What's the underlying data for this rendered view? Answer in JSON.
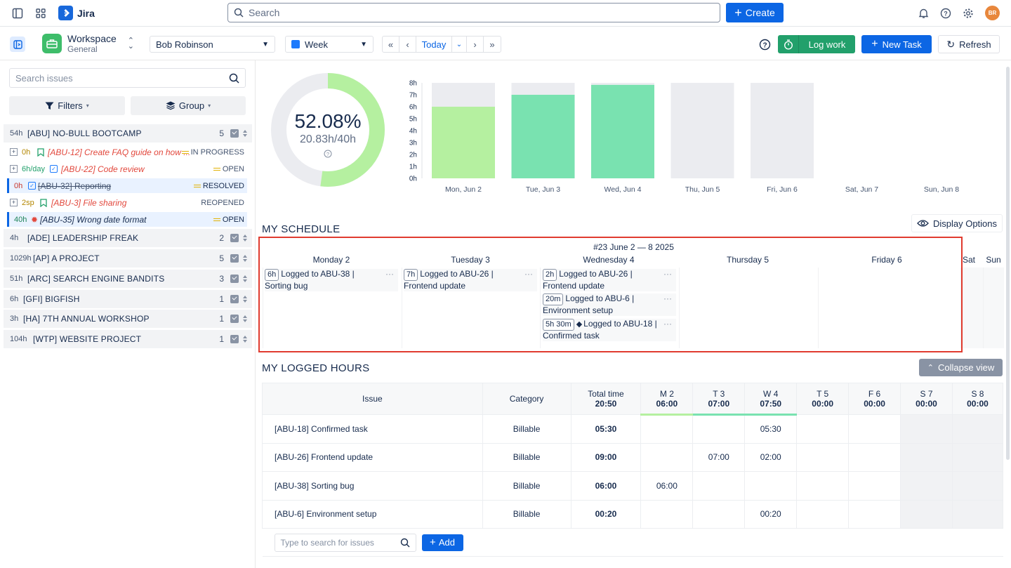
{
  "topbar": {
    "app_name": "Jira",
    "search_placeholder": "Search",
    "create_label": "Create",
    "avatar_initials": "BR"
  },
  "toolbar": {
    "workspace_title": "Workspace",
    "workspace_sub": "General",
    "user_select": "Bob Robinson",
    "period_select": "Week",
    "today_label": "Today",
    "log_work_label": "Log work",
    "new_task_label": "New Task",
    "refresh_label": "Refresh"
  },
  "sidebar": {
    "search_placeholder": "Search issues",
    "filters_label": "Filters",
    "group_label": "Group",
    "projects": [
      {
        "hours": "54h",
        "title": "[ABU] NO-BULL BOOTCAMP",
        "count": "5"
      },
      {
        "hours": "4h",
        "title": "[ADE] LEADERSHIP FREAK",
        "count": "2"
      },
      {
        "hours": "1029h",
        "title": "[AP] A PROJECT",
        "count": "5"
      },
      {
        "hours": "51h",
        "title": "[ARC] SEARCH ENGINE BANDITS",
        "count": "3"
      },
      {
        "hours": "6h",
        "title": "[GFI] BIGFISH",
        "count": "1"
      },
      {
        "hours": "3h",
        "title": "[HA] 7TH ANNUAL WORKSHOP",
        "count": "1"
      },
      {
        "hours": "104h",
        "title": "[WTP] WEBSITE PROJECT",
        "count": "1"
      }
    ],
    "issues": [
      {
        "est": "0h",
        "title": "[ABU-12] Create FAQ guide on how ...",
        "status": "IN PROGRESS"
      },
      {
        "est": "6h/day",
        "title": "[ABU-22] Code review",
        "status": "OPEN"
      },
      {
        "est": "0h",
        "title": "[ABU-32] Reporting",
        "status": "RESOLVED"
      },
      {
        "est": "2sp",
        "title": "[ABU-3] File sharing",
        "status": "REOPENED"
      },
      {
        "est": "40h",
        "title": "[ABU-35] Wrong date format",
        "status": "OPEN"
      }
    ]
  },
  "progress": {
    "percent_text": "52.08%",
    "hours_text": "20.83h/40h",
    "fraction": 0.5208
  },
  "chart_data": {
    "type": "bar",
    "categories": [
      "Mon, Jun 2",
      "Tue, Jun 3",
      "Wed, Jun 4",
      "Thu, Jun 5",
      "Fri, Jun 6",
      "Sat, Jun 7",
      "Sun, Jun 8"
    ],
    "series": [
      {
        "values": [
          6,
          7,
          7.83,
          0,
          0,
          0,
          0
        ]
      },
      {
        "values": [
          8,
          8,
          8,
          8,
          8,
          0,
          0
        ]
      }
    ],
    "y_ticks": [
      "0h",
      "1h",
      "2h",
      "3h",
      "4h",
      "5h",
      "6h",
      "7h",
      "8h"
    ],
    "ylim": [
      0,
      8
    ],
    "colors": {
      "logged_light": "#b5f0a0",
      "logged_full": "#79e2b0",
      "capacity": "#ebecf0"
    }
  },
  "schedule": {
    "title": "MY SCHEDULE",
    "display_options": "Display Options",
    "week_label": "#23 June 2 — 8 2025",
    "days": [
      "Monday 2",
      "Tuesday 3",
      "Wednesday 4",
      "Thursday 5",
      "Friday 6",
      "Sat",
      "Sun"
    ],
    "entries": [
      {
        "dur": "6h",
        "text": "Logged to ABU-38 |",
        "sub": "Sorting bug"
      },
      {
        "dur": "7h",
        "text": "Logged to ABU-26 |",
        "sub": "Frontend update"
      },
      {
        "dur": "2h",
        "text": "Logged to ABU-26 |",
        "sub": "Frontend update"
      },
      {
        "dur": "20m",
        "text": "Logged to ABU-6 |",
        "sub": "Environment setup"
      },
      {
        "dur": "5h 30m",
        "text": "Logged to ABU-18 |",
        "sub": "Confirmed task"
      }
    ]
  },
  "logged": {
    "title": "MY LOGGED HOURS",
    "collapse_label": "Collapse view",
    "headers": {
      "issue": "Issue",
      "category": "Category",
      "total": "Total time",
      "total_val": "20:50"
    },
    "days": [
      {
        "d": "M 2",
        "v": "06:00"
      },
      {
        "d": "T 3",
        "v": "07:00"
      },
      {
        "d": "W 4",
        "v": "07:50"
      },
      {
        "d": "T 5",
        "v": "00:00"
      },
      {
        "d": "F 6",
        "v": "00:00"
      },
      {
        "d": "S 7",
        "v": "00:00"
      },
      {
        "d": "S 8",
        "v": "00:00"
      }
    ],
    "rows": [
      {
        "issue": "[ABU-18] Confirmed task",
        "cat": "Billable",
        "total": "05:30",
        "cells": [
          "",
          "",
          "05:30",
          "",
          "",
          "",
          ""
        ]
      },
      {
        "issue": "[ABU-26] Frontend update",
        "cat": "Billable",
        "total": "09:00",
        "cells": [
          "",
          "07:00",
          "02:00",
          "",
          "",
          "",
          ""
        ]
      },
      {
        "issue": "[ABU-38] Sorting bug",
        "cat": "Billable",
        "total": "06:00",
        "cells": [
          "06:00",
          "",
          "",
          "",
          "",
          "",
          ""
        ]
      },
      {
        "issue": "[ABU-6] Environment setup",
        "cat": "Billable",
        "total": "00:20",
        "cells": [
          "",
          "",
          "00:20",
          "",
          "",
          "",
          ""
        ]
      }
    ],
    "add_placeholder": "Type to search for issues",
    "add_label": "Add"
  }
}
